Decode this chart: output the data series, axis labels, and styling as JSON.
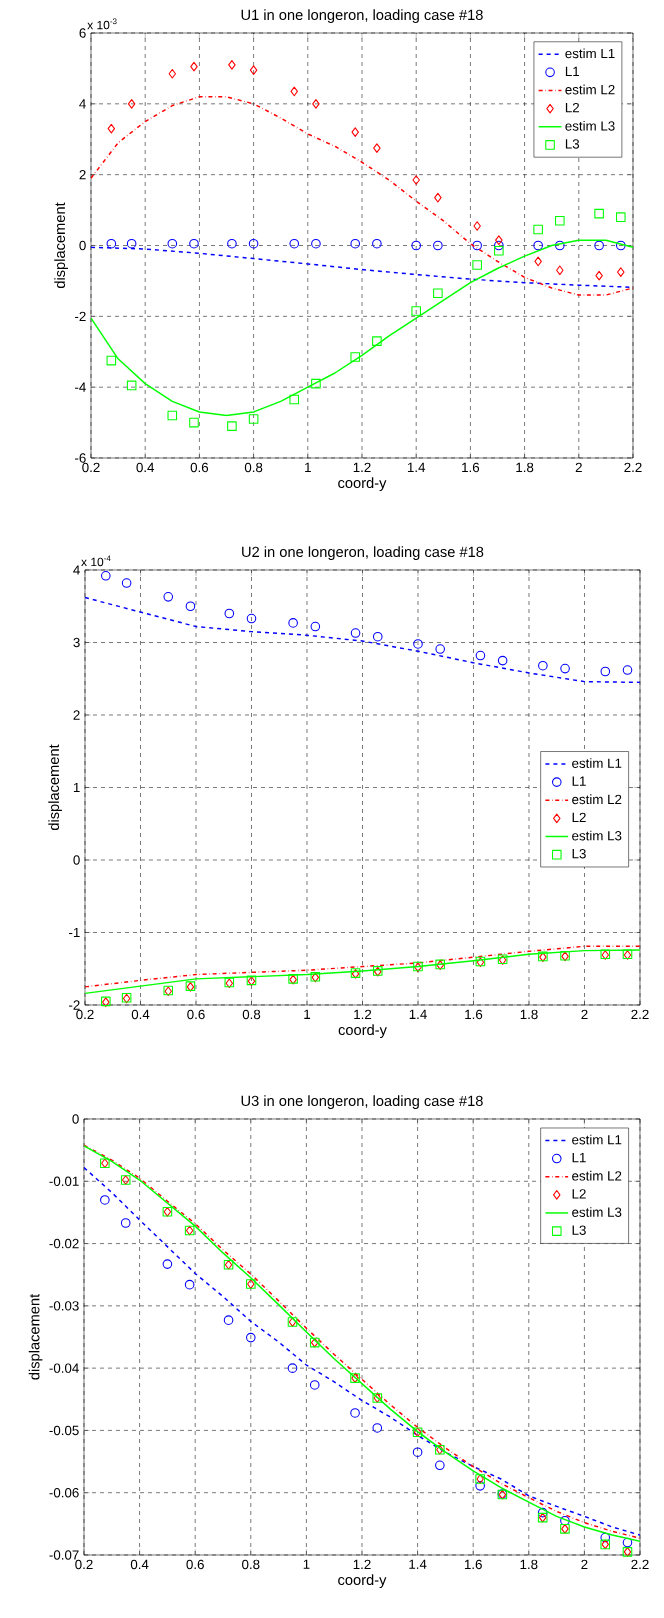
{
  "chart_data": [
    {
      "type": "line",
      "title": "U1 in one longeron, loading case #18",
      "xlabel": "coord-y",
      "ylabel": "displacement",
      "annotations": [
        "x 10$^{-3}$"
      ],
      "xlim": [
        0.2,
        2.2
      ],
      "ylim": [
        -6,
        6
      ],
      "xticks": [
        0.2,
        0.4,
        0.6,
        0.8,
        1,
        1.2,
        1.4,
        1.6,
        1.8,
        2,
        2.2
      ],
      "yticks": [
        -6,
        -4,
        -2,
        0,
        2,
        4,
        6
      ],
      "grid": true,
      "legend": "top right",
      "series": [
        {
          "name": "estim L1",
          "color": "#0000ff",
          "line_style": "dashed",
          "marker": "none",
          "x": [
            0.2,
            0.4,
            0.6,
            0.8,
            1.0,
            1.2,
            1.4,
            1.6,
            1.8,
            2.0,
            2.2
          ],
          "values": [
            -0.05,
            -0.1,
            -0.22,
            -0.37,
            -0.52,
            -0.68,
            -0.82,
            -0.95,
            -1.05,
            -1.12,
            -1.18
          ]
        },
        {
          "name": "L1",
          "type": "scatter",
          "color": "#0000ff",
          "marker": "circle",
          "x": [
            0.275,
            0.35,
            0.5,
            0.58,
            0.72,
            0.8,
            0.95,
            1.03,
            1.175,
            1.255,
            1.4,
            1.48,
            1.625,
            1.705,
            1.85,
            1.93,
            2.075,
            2.155
          ],
          "values": [
            0.05,
            0.05,
            0.05,
            0.05,
            0.05,
            0.05,
            0.05,
            0.05,
            0.05,
            0.05,
            0,
            0,
            0,
            0,
            0,
            0,
            0,
            0
          ]
        },
        {
          "name": "estim L2",
          "color": "#ff0000",
          "line_style": "dashdot",
          "marker": "none",
          "x": [
            0.2,
            0.3,
            0.4,
            0.5,
            0.6,
            0.7,
            0.8,
            0.9,
            1.0,
            1.1,
            1.2,
            1.3,
            1.4,
            1.5,
            1.6,
            1.7,
            1.8,
            1.9,
            2.0,
            2.1,
            2.2
          ],
          "values": [
            1.9,
            2.9,
            3.5,
            3.95,
            4.2,
            4.2,
            4.0,
            3.6,
            3.15,
            2.8,
            2.35,
            1.85,
            1.25,
            0.7,
            0.05,
            -0.45,
            -0.9,
            -1.2,
            -1.4,
            -1.4,
            -1.2
          ]
        },
        {
          "name": "L2",
          "type": "scatter",
          "color": "#ff0000",
          "marker": "diamond",
          "x": [
            0.275,
            0.35,
            0.5,
            0.58,
            0.72,
            0.8,
            0.95,
            1.03,
            1.175,
            1.255,
            1.4,
            1.48,
            1.625,
            1.705,
            1.85,
            1.93,
            2.075,
            2.155
          ],
          "values": [
            3.3,
            4.0,
            4.85,
            5.05,
            5.1,
            4.95,
            4.35,
            4.0,
            3.2,
            2.75,
            1.85,
            1.35,
            0.55,
            0.15,
            -0.45,
            -0.7,
            -0.85,
            -0.75
          ]
        },
        {
          "name": "estim L3",
          "color": "#00ff00",
          "line_style": "solid",
          "marker": "none",
          "x": [
            0.2,
            0.3,
            0.4,
            0.5,
            0.6,
            0.7,
            0.8,
            0.9,
            1.0,
            1.1,
            1.2,
            1.3,
            1.4,
            1.5,
            1.6,
            1.7,
            1.8,
            1.9,
            2.0,
            2.1,
            2.2
          ],
          "values": [
            -2.05,
            -3.2,
            -3.9,
            -4.4,
            -4.7,
            -4.8,
            -4.7,
            -4.4,
            -4.0,
            -3.6,
            -3.1,
            -2.55,
            -2.05,
            -1.55,
            -1.05,
            -0.65,
            -0.3,
            0.0,
            0.15,
            0.15,
            -0.05
          ]
        },
        {
          "name": "L3",
          "type": "scatter",
          "color": "#00ff00",
          "marker": "square",
          "x": [
            0.275,
            0.35,
            0.5,
            0.58,
            0.72,
            0.8,
            0.95,
            1.03,
            1.175,
            1.255,
            1.4,
            1.48,
            1.625,
            1.705,
            1.85,
            1.93,
            2.075,
            2.155
          ],
          "values": [
            -3.25,
            -3.95,
            -4.8,
            -5.0,
            -5.1,
            -4.9,
            -4.35,
            -3.9,
            -3.15,
            -2.7,
            -1.85,
            -1.35,
            -0.55,
            -0.15,
            0.45,
            0.7,
            0.9,
            0.8
          ]
        }
      ]
    },
    {
      "type": "line",
      "title": "U2 in one longeron, loading case #18",
      "xlabel": "coord-y",
      "ylabel": "displacement",
      "annotations": [
        "x 10$^{-4}$"
      ],
      "xlim": [
        0.2,
        2.2
      ],
      "ylim": [
        -2,
        4
      ],
      "xticks": [
        0.2,
        0.4,
        0.6,
        0.8,
        1,
        1.2,
        1.4,
        1.6,
        1.8,
        2,
        2.2
      ],
      "yticks": [
        -2,
        -1,
        0,
        1,
        2,
        3,
        4
      ],
      "grid": true,
      "legend": "right",
      "series": [
        {
          "name": "estim L1",
          "color": "#0000ff",
          "line_style": "dashed",
          "marker": "none",
          "x": [
            0.2,
            0.4,
            0.6,
            0.8,
            1.0,
            1.2,
            1.4,
            1.6,
            1.8,
            2.0,
            2.2
          ],
          "values": [
            3.62,
            3.42,
            3.22,
            3.15,
            3.1,
            3.02,
            2.88,
            2.72,
            2.58,
            2.46,
            2.45
          ]
        },
        {
          "name": "L1",
          "type": "scatter",
          "color": "#0000ff",
          "marker": "circle",
          "x": [
            0.275,
            0.35,
            0.5,
            0.58,
            0.72,
            0.8,
            0.95,
            1.03,
            1.175,
            1.255,
            1.4,
            1.48,
            1.625,
            1.705,
            1.85,
            1.93,
            2.075,
            2.155
          ],
          "values": [
            3.92,
            3.82,
            3.63,
            3.5,
            3.4,
            3.33,
            3.27,
            3.22,
            3.13,
            3.08,
            2.98,
            2.91,
            2.82,
            2.75,
            2.68,
            2.64,
            2.6,
            2.62
          ]
        },
        {
          "name": "estim L2",
          "color": "#ff0000",
          "line_style": "dashdot",
          "marker": "none",
          "x": [
            0.2,
            0.4,
            0.6,
            0.8,
            1.0,
            1.2,
            1.4,
            1.6,
            1.8,
            2.0,
            2.2
          ],
          "values": [
            -1.75,
            -1.66,
            -1.58,
            -1.55,
            -1.52,
            -1.47,
            -1.42,
            -1.34,
            -1.26,
            -1.19,
            -1.19
          ]
        },
        {
          "name": "L2",
          "type": "scatter",
          "color": "#ff0000",
          "marker": "diamond",
          "x": [
            0.275,
            0.35,
            0.5,
            0.58,
            0.72,
            0.8,
            0.95,
            1.03,
            1.175,
            1.255,
            1.4,
            1.48,
            1.625,
            1.705,
            1.85,
            1.93,
            2.075,
            2.155
          ],
          "values": [
            -1.96,
            -1.91,
            -1.81,
            -1.75,
            -1.7,
            -1.67,
            -1.65,
            -1.62,
            -1.57,
            -1.54,
            -1.48,
            -1.45,
            -1.41,
            -1.38,
            -1.34,
            -1.33,
            -1.31,
            -1.31
          ]
        },
        {
          "name": "estim L3",
          "color": "#00ff00",
          "line_style": "solid",
          "marker": "none",
          "x": [
            0.2,
            0.4,
            0.6,
            0.8,
            1.0,
            1.2,
            1.4,
            1.6,
            1.8,
            2.0,
            2.2
          ],
          "values": [
            -1.84,
            -1.74,
            -1.64,
            -1.61,
            -1.58,
            -1.53,
            -1.47,
            -1.39,
            -1.3,
            -1.25,
            -1.24
          ]
        },
        {
          "name": "L3",
          "type": "scatter",
          "color": "#00ff00",
          "marker": "square",
          "x": [
            0.275,
            0.35,
            0.5,
            0.58,
            0.72,
            0.8,
            0.95,
            1.03,
            1.175,
            1.255,
            1.4,
            1.48,
            1.625,
            1.705,
            1.85,
            1.93,
            2.075,
            2.155
          ],
          "values": [
            -1.95,
            -1.9,
            -1.8,
            -1.74,
            -1.69,
            -1.66,
            -1.64,
            -1.61,
            -1.56,
            -1.53,
            -1.47,
            -1.44,
            -1.4,
            -1.37,
            -1.33,
            -1.32,
            -1.3,
            -1.3
          ]
        }
      ]
    },
    {
      "type": "line",
      "title": "U3 in one longeron, loading case #18",
      "xlabel": "coord-y",
      "ylabel": "displacement",
      "xlim": [
        0.2,
        2.2
      ],
      "ylim": [
        -0.07,
        0
      ],
      "xticks": [
        0.2,
        0.4,
        0.6,
        0.8,
        1,
        1.2,
        1.4,
        1.6,
        1.8,
        2,
        2.2
      ],
      "yticks": [
        -0.07,
        -0.06,
        -0.05,
        -0.04,
        -0.03,
        -0.02,
        -0.01,
        0
      ],
      "grid": true,
      "legend": "top right",
      "series": [
        {
          "name": "estim L1",
          "color": "#0000ff",
          "line_style": "dashed",
          "marker": "none",
          "x": [
            0.2,
            0.3,
            0.4,
            0.5,
            0.6,
            0.7,
            0.8,
            0.9,
            1.0,
            1.1,
            1.2,
            1.3,
            1.4,
            1.5,
            1.6,
            1.7,
            1.8,
            1.9,
            2.0,
            2.1,
            2.2
          ],
          "values": [
            -0.0078,
            -0.0118,
            -0.0162,
            -0.0205,
            -0.0248,
            -0.0285,
            -0.0325,
            -0.0358,
            -0.0395,
            -0.0422,
            -0.0452,
            -0.0478,
            -0.0508,
            -0.0535,
            -0.0558,
            -0.0578,
            -0.0605,
            -0.0622,
            -0.0638,
            -0.0655,
            -0.0668
          ]
        },
        {
          "name": "L1",
          "type": "scatter",
          "color": "#0000ff",
          "marker": "circle",
          "x": [
            0.275,
            0.35,
            0.5,
            0.58,
            0.72,
            0.8,
            0.95,
            1.03,
            1.175,
            1.255,
            1.4,
            1.48,
            1.625,
            1.705,
            1.85,
            1.93,
            2.075,
            2.155
          ],
          "values": [
            -0.013,
            -0.0167,
            -0.0233,
            -0.0266,
            -0.0323,
            -0.0351,
            -0.04,
            -0.0427,
            -0.0472,
            -0.0496,
            -0.0535,
            -0.0556,
            -0.0589,
            -0.0602,
            -0.0632,
            -0.0645,
            -0.0672,
            -0.068
          ]
        },
        {
          "name": "estim L2",
          "color": "#ff0000",
          "line_style": "dashdot",
          "marker": "none",
          "x": [
            0.2,
            0.3,
            0.4,
            0.5,
            0.6,
            0.7,
            0.8,
            0.9,
            1.0,
            1.1,
            1.2,
            1.3,
            1.4,
            1.5,
            1.6,
            1.7,
            1.8,
            1.9,
            2.0,
            2.1,
            2.2
          ],
          "values": [
            -0.0042,
            -0.0066,
            -0.0095,
            -0.0132,
            -0.0168,
            -0.021,
            -0.0249,
            -0.0292,
            -0.0336,
            -0.0378,
            -0.0418,
            -0.0458,
            -0.0495,
            -0.0528,
            -0.0558,
            -0.0585,
            -0.0608,
            -0.063,
            -0.0648,
            -0.0662,
            -0.0673
          ]
        },
        {
          "name": "L2",
          "type": "scatter",
          "color": "#ff0000",
          "marker": "diamond",
          "x": [
            0.275,
            0.35,
            0.5,
            0.58,
            0.72,
            0.8,
            0.95,
            1.03,
            1.175,
            1.255,
            1.4,
            1.48,
            1.625,
            1.705,
            1.85,
            1.93,
            2.075,
            2.155
          ],
          "values": [
            -0.0071,
            -0.0098,
            -0.0149,
            -0.0179,
            -0.0234,
            -0.0265,
            -0.0326,
            -0.0359,
            -0.0416,
            -0.0448,
            -0.0503,
            -0.0531,
            -0.0578,
            -0.0603,
            -0.064,
            -0.0658,
            -0.0683,
            -0.0695
          ]
        },
        {
          "name": "estim L3",
          "color": "#00ff00",
          "line_style": "solid",
          "marker": "none",
          "x": [
            0.2,
            0.3,
            0.4,
            0.5,
            0.6,
            0.7,
            0.8,
            0.9,
            1.0,
            1.1,
            1.2,
            1.3,
            1.4,
            1.5,
            1.6,
            1.7,
            1.8,
            1.9,
            2.0,
            2.1,
            2.2
          ],
          "values": [
            -0.0043,
            -0.0068,
            -0.0098,
            -0.0135,
            -0.0172,
            -0.0215,
            -0.0255,
            -0.0298,
            -0.0342,
            -0.0385,
            -0.0425,
            -0.0465,
            -0.0502,
            -0.0535,
            -0.0565,
            -0.0592,
            -0.0615,
            -0.0638,
            -0.0655,
            -0.0668,
            -0.0678
          ]
        },
        {
          "name": "L3",
          "type": "scatter",
          "color": "#00ff00",
          "marker": "square",
          "x": [
            0.275,
            0.35,
            0.5,
            0.58,
            0.72,
            0.8,
            0.95,
            1.03,
            1.175,
            1.255,
            1.4,
            1.48,
            1.625,
            1.705,
            1.85,
            1.93,
            2.075,
            2.155
          ],
          "values": [
            -0.0071,
            -0.0098,
            -0.0149,
            -0.0179,
            -0.0234,
            -0.0265,
            -0.0326,
            -0.0359,
            -0.0416,
            -0.0448,
            -0.0503,
            -0.0531,
            -0.0578,
            -0.0603,
            -0.064,
            -0.0658,
            -0.0683,
            -0.0695
          ]
        }
      ]
    }
  ]
}
